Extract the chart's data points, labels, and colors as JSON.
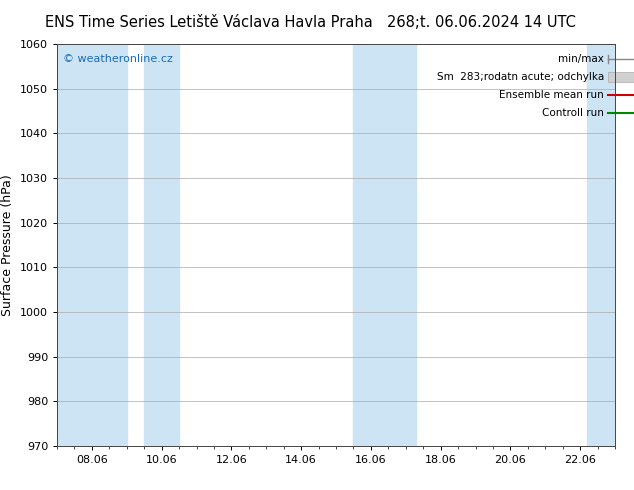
{
  "title_left": "ENS Time Series Letiště Václava Havla Praha",
  "title_right": "268;t. 06.06.2024 14 UTC",
  "ylabel": "Surface Pressure (hPa)",
  "ylim": [
    970,
    1060
  ],
  "yticks": [
    970,
    980,
    990,
    1000,
    1010,
    1020,
    1030,
    1040,
    1050,
    1060
  ],
  "xtick_labels": [
    "08.06",
    "10.06",
    "12.06",
    "14.06",
    "16.06",
    "18.06",
    "20.06",
    "22.06"
  ],
  "xlim": [
    0,
    16
  ],
  "xtick_positions": [
    1,
    3,
    5,
    7,
    9,
    11,
    13,
    15
  ],
  "shaded_bands": [
    {
      "xstart": -0.1,
      "xend": 2.0
    },
    {
      "xstart": 2.5,
      "xend": 3.5
    },
    {
      "xstart": 8.5,
      "xend": 10.3
    },
    {
      "xstart": 15.2,
      "xend": 16.1
    }
  ],
  "shaded_color": "#cde4f5",
  "background_color": "#ffffff",
  "plot_bg_color": "#ffffff",
  "grid_color": "#aaaaaa",
  "watermark": "© weatheronline.cz",
  "watermark_color": "#1a6bb5",
  "legend_labels": [
    "min/max",
    "Sm  283;rodatn acute; odchylka",
    "Ensemble mean run",
    "Controll run"
  ],
  "legend_colors": [
    "#888888",
    "#cccccc",
    "#cc0000",
    "#008800"
  ],
  "title_fontsize": 10.5,
  "ylabel_fontsize": 9,
  "tick_fontsize": 8,
  "legend_fontsize": 7.5,
  "watermark_fontsize": 8
}
